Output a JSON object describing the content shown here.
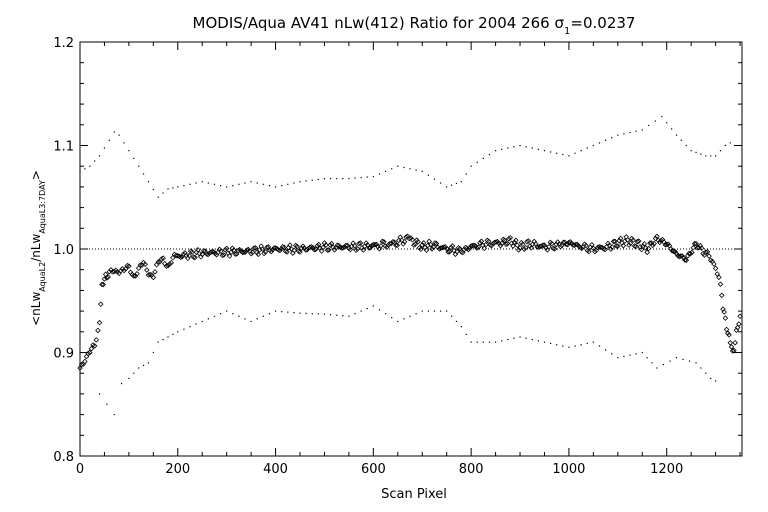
{
  "chart_data": {
    "type": "scatter",
    "title": "MODIS/Aqua AV41 nLw(412) Ratio for 2004 266 σ1=0.0237",
    "xlabel": "Scan Pixel",
    "ylabel": "<nLwAquaL2/nLwAquaL3:7DAY>",
    "xlim": [
      0,
      1354
    ],
    "ylim": [
      0.8,
      1.2
    ],
    "x_ticks": [
      "0",
      "200",
      "400",
      "600",
      "800",
      "1000",
      "1200"
    ],
    "y_ticks": [
      "0.8",
      "0.9",
      "1.0",
      "1.1",
      "1.2"
    ],
    "reference_line_y": 1.0,
    "grid": false,
    "legend": "none",
    "series": [
      {
        "marker": "diamond",
        "x": [
          0,
          10,
          20,
          30,
          40,
          45,
          50,
          55,
          60,
          70,
          80,
          90,
          100,
          110,
          120,
          130,
          140,
          150,
          160,
          170,
          180,
          190,
          200,
          250,
          300,
          350,
          400,
          450,
          500,
          550,
          600,
          640,
          670,
          680,
          700,
          720,
          750,
          780,
          800,
          830,
          860,
          880,
          900,
          920,
          950,
          980,
          1000,
          1020,
          1050,
          1080,
          1100,
          1120,
          1140,
          1160,
          1180,
          1200,
          1220,
          1240,
          1260,
          1280,
          1290,
          1300,
          1310,
          1315,
          1320,
          1325,
          1330,
          1335,
          1340,
          1345,
          1350
        ],
        "y": [
          0.885,
          0.895,
          0.9,
          0.905,
          0.93,
          0.965,
          0.97,
          0.975,
          0.975,
          0.98,
          0.98,
          0.978,
          0.982,
          0.975,
          0.98,
          0.985,
          0.978,
          0.975,
          0.985,
          0.99,
          0.985,
          0.99,
          0.993,
          0.996,
          0.997,
          0.998,
          1.0,
          1.0,
          1.002,
          1.002,
          1.003,
          1.005,
          1.01,
          1.008,
          1.002,
          1.004,
          1.0,
          0.998,
          1.002,
          1.005,
          1.006,
          1.008,
          1.002,
          1.005,
          1.002,
          1.004,
          1.006,
          1.003,
          1.0,
          1.002,
          1.006,
          1.008,
          1.005,
          1.0,
          1.01,
          1.005,
          0.995,
          0.99,
          1.005,
          0.995,
          0.99,
          0.985,
          0.965,
          0.945,
          0.93,
          0.92,
          0.91,
          0.9,
          0.91,
          0.925,
          0.935
        ]
      },
      {
        "marker": "dot",
        "x": [
          0,
          20,
          40,
          60,
          70,
          80,
          100,
          120,
          140,
          160,
          180,
          200,
          250,
          300,
          350,
          400,
          450,
          500,
          550,
          600,
          650,
          700,
          750,
          780,
          800,
          850,
          900,
          950,
          1000,
          1050,
          1100,
          1150,
          1190,
          1220,
          1250,
          1280,
          1300,
          1320,
          1340
        ],
        "y": [
          1.075,
          1.08,
          1.09,
          1.105,
          1.113,
          1.11,
          1.095,
          1.08,
          1.065,
          1.05,
          1.058,
          1.06,
          1.065,
          1.06,
          1.065,
          1.06,
          1.065,
          1.068,
          1.068,
          1.07,
          1.08,
          1.075,
          1.06,
          1.065,
          1.08,
          1.095,
          1.1,
          1.095,
          1.09,
          1.1,
          1.11,
          1.115,
          1.128,
          1.11,
          1.095,
          1.09,
          1.09,
          1.1,
          1.105
        ]
      },
      {
        "marker": "dot",
        "x": [
          40,
          55,
          70,
          85,
          100,
          120,
          140,
          160,
          180,
          200,
          250,
          300,
          350,
          400,
          450,
          500,
          550,
          600,
          650,
          700,
          750,
          780,
          800,
          850,
          900,
          950,
          1000,
          1050,
          1100,
          1150,
          1180,
          1220,
          1260,
          1290,
          1310
        ],
        "y": [
          0.86,
          0.85,
          0.84,
          0.87,
          0.875,
          0.885,
          0.89,
          0.91,
          0.915,
          0.92,
          0.93,
          0.94,
          0.93,
          0.94,
          0.938,
          0.937,
          0.935,
          0.945,
          0.93,
          0.94,
          0.94,
          0.925,
          0.91,
          0.91,
          0.915,
          0.91,
          0.905,
          0.91,
          0.895,
          0.9,
          0.885,
          0.895,
          0.89,
          0.875,
          0.87
        ]
      }
    ]
  }
}
